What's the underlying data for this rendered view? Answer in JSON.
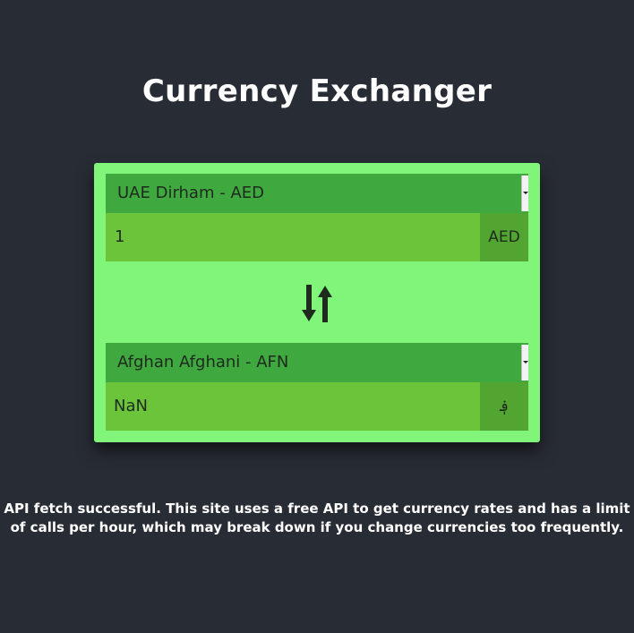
{
  "app": {
    "title": "Currency Exchanger"
  },
  "from": {
    "currency_label": "UAE Dirham - AED",
    "amount": "1",
    "code": "AED"
  },
  "to": {
    "currency_label": "Afghan Afghani - AFN",
    "amount": "NaN",
    "symbol": "؋"
  },
  "swap": {
    "icon": "swap-vertical-icon"
  },
  "status": {
    "message": "API fetch successful. This site uses a free API to get currency rates and has a limit of calls per hour, which may break down if you change currencies too frequently."
  },
  "colors": {
    "background": "#282c34",
    "card": "#80f57a",
    "select": "#3fa83f",
    "input": "#6cc43b",
    "code": "#52a530"
  }
}
